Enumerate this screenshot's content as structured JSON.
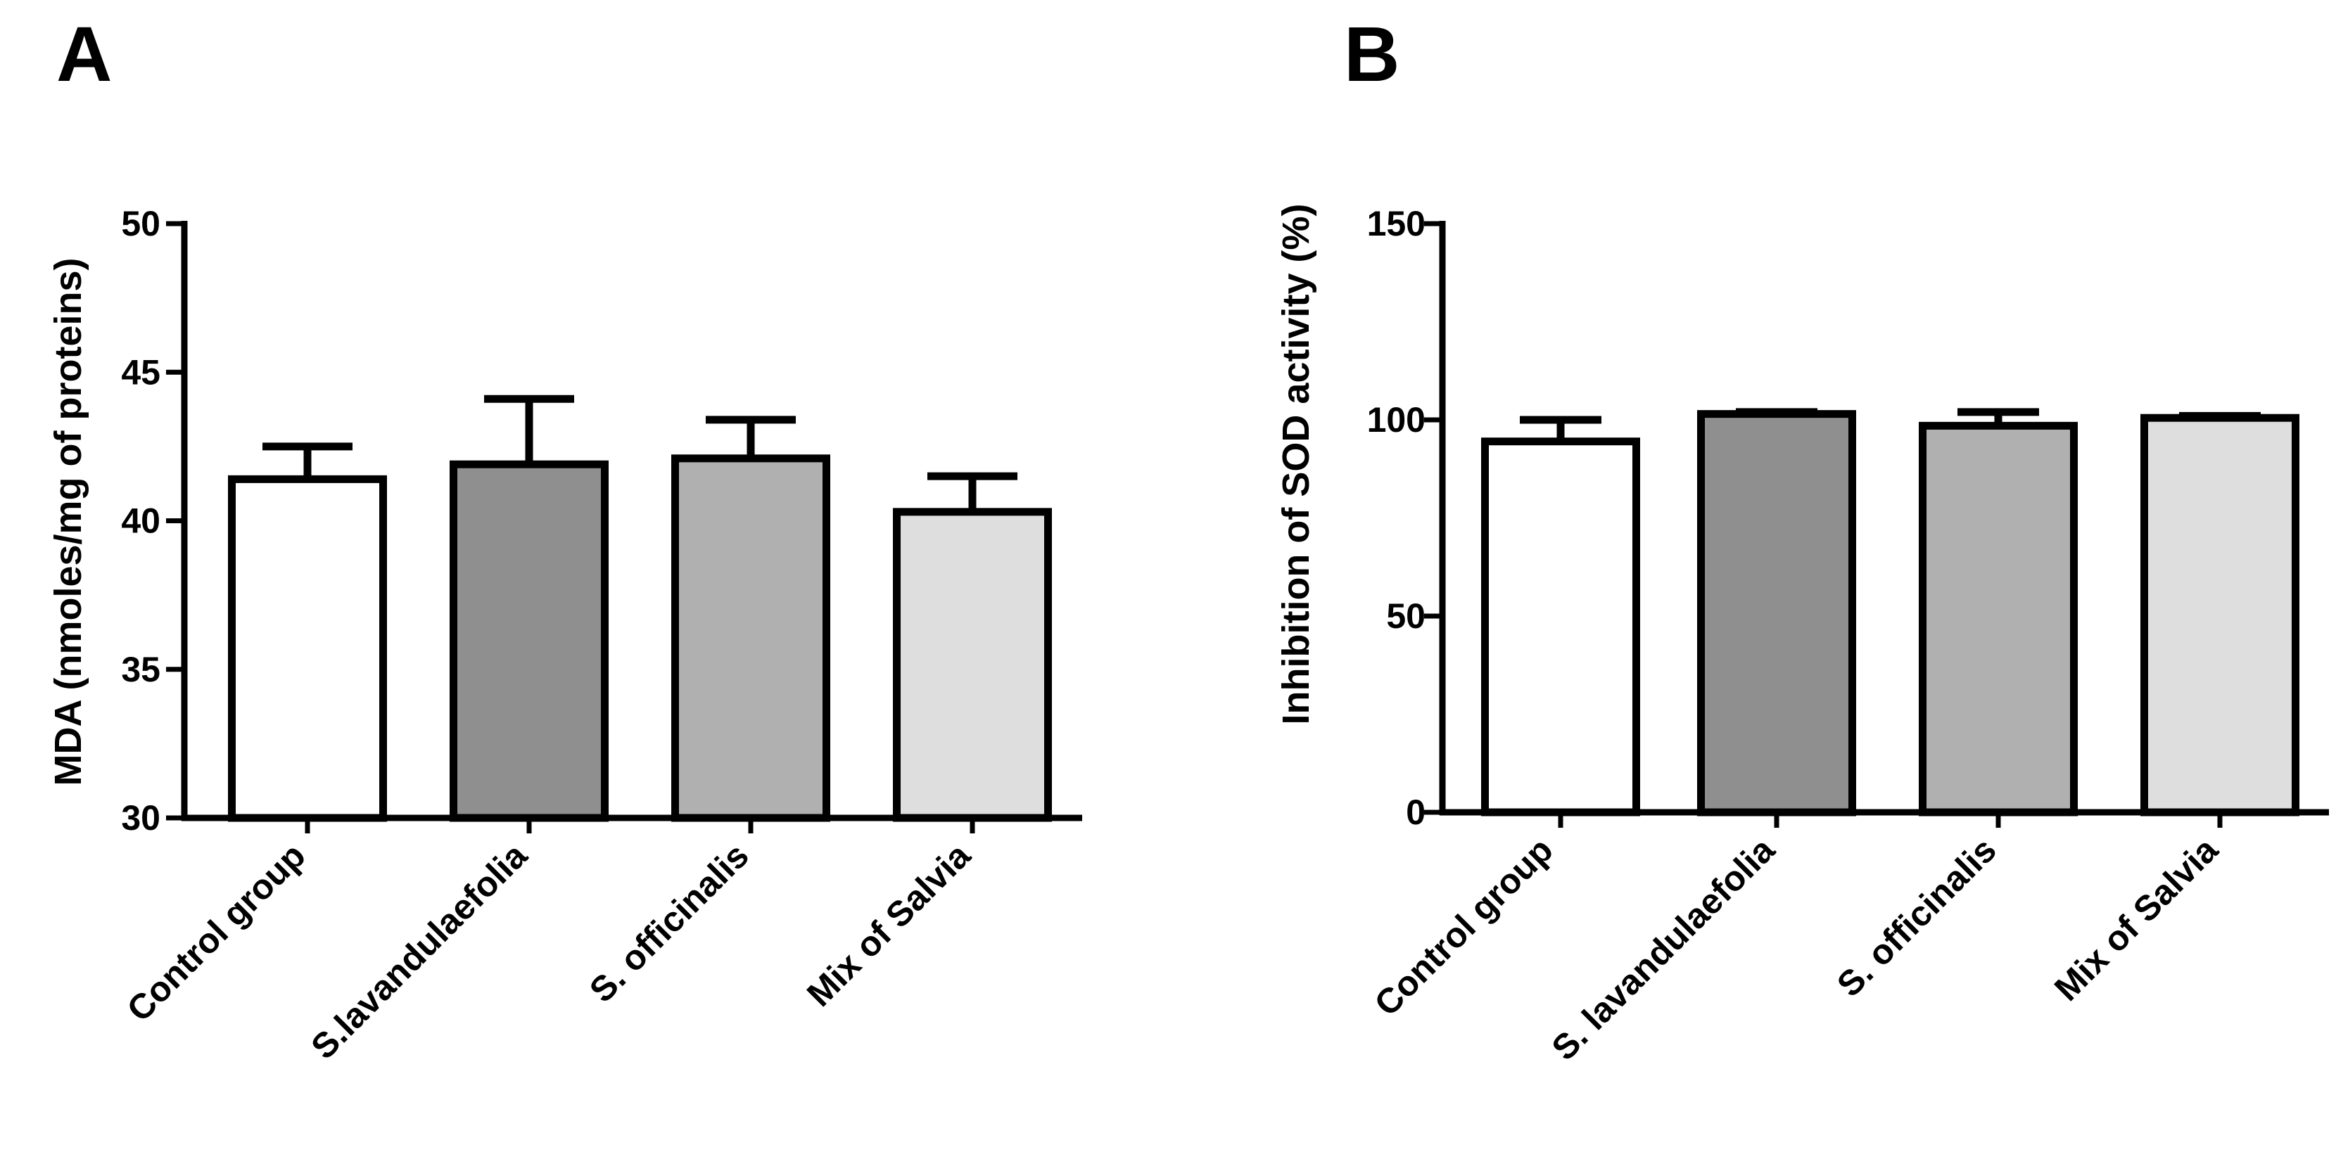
{
  "chart_data": [
    {
      "panel_label": "A",
      "type": "bar",
      "categories": [
        "Control group",
        "S.lavandulaefolia",
        "S. officinalis",
        "Mix of Salvia"
      ],
      "values": [
        41.4,
        41.9,
        42.1,
        40.3
      ],
      "errors": [
        1.1,
        2.2,
        1.3,
        1.2
      ],
      "bar_colors": [
        "#ffffff",
        "#8f8f8f",
        "#b0b0b0",
        "#dedede"
      ],
      "title": "",
      "xlabel": "",
      "ylabel": "MDA (nmoles/mg of proteins)",
      "ylim": [
        30,
        50
      ],
      "yticks": [
        30,
        35,
        40,
        45,
        50
      ],
      "ytick_labels": [
        "30",
        "35",
        "40",
        "45",
        "50"
      ],
      "grid": false,
      "legend": "none"
    },
    {
      "panel_label": "B",
      "type": "bar",
      "categories": [
        "Control group",
        "S. lavandulaefolia",
        "S. officinalis",
        "Mix of Salvia"
      ],
      "values": [
        94.5,
        101.5,
        98.5,
        100.5
      ],
      "errors": [
        5.5,
        0.5,
        3.5,
        0.5
      ],
      "bar_colors": [
        "#ffffff",
        "#8f8f8f",
        "#b0b0b0",
        "#dedede"
      ],
      "title": "",
      "xlabel": "",
      "ylabel": "Inhibition of SOD activity (%)",
      "ylim": [
        0,
        150
      ],
      "yticks": [
        0,
        50,
        100,
        150
      ],
      "ytick_labels": [
        "0",
        "50",
        "100",
        "150"
      ],
      "grid": false,
      "legend": "none"
    }
  ]
}
